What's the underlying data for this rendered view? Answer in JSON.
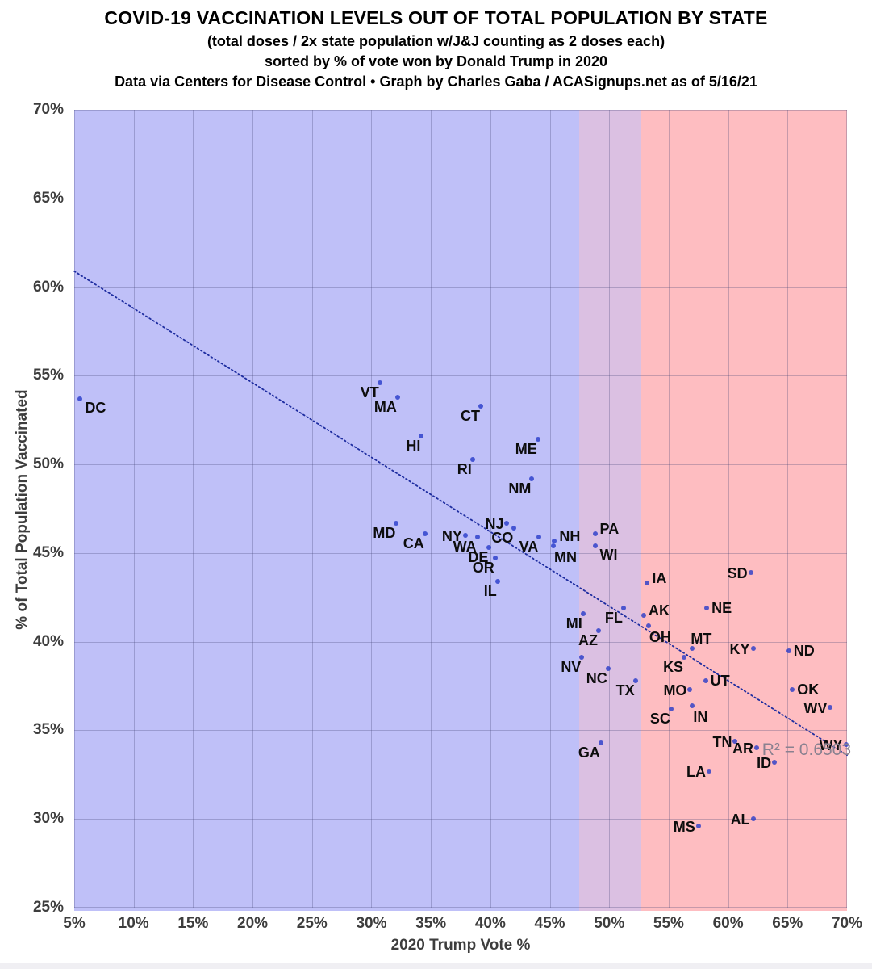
{
  "header": {
    "title": "COVID-19 VACCINATION LEVELS OUT OF TOTAL POPULATION BY STATE",
    "subtitle1": "(total doses / 2x state population w/J&J counting as 2 doses each)",
    "subtitle2": "sorted by % of vote won by Donald Trump in 2020",
    "source": "Data via Centers for Disease Control • Graph by Charles Gaba / ACASignups.net as of 5/16/21"
  },
  "chart_data": {
    "type": "scatter",
    "title": "COVID-19 VACCINATION LEVELS OUT OF TOTAL POPULATION BY STATE",
    "xlabel": "2020 Trump Vote %",
    "ylabel": "% of Total Population Vaccinated",
    "xlim": [
      5,
      70
    ],
    "ylim": [
      25,
      70
    ],
    "x_ticks": [
      5,
      10,
      15,
      20,
      25,
      30,
      35,
      40,
      45,
      50,
      55,
      60,
      65,
      70
    ],
    "y_ticks": [
      25,
      30,
      35,
      40,
      45,
      50,
      55,
      60,
      65,
      70
    ],
    "grid": true,
    "legend": "none",
    "background_bands": [
      {
        "name": "blue-states-band",
        "from": 5,
        "to": 47.5,
        "color": "#bfc0f8"
      },
      {
        "name": "purple-states-band",
        "from": 47.5,
        "to": 52.7,
        "color": "#dbc0e2"
      },
      {
        "name": "red-states-band",
        "from": 52.7,
        "to": 70,
        "color": "#febdc1"
      }
    ],
    "trendline": {
      "x1": 5,
      "y1": 60.9,
      "x2": 70,
      "y2": 33.6,
      "style": "dotted",
      "color": "#1e2da0"
    },
    "annotation": {
      "text": "R² = 0.6503",
      "x": 66.6,
      "y": 33.9,
      "color": "#8a8190"
    },
    "colors": {
      "dot": "rgba(35,55,200,0.78)",
      "trend": "#1e2da0",
      "grid": "rgba(68,68,120,0.30)",
      "tick_text": "#3d3d3d",
      "state_label": "#0d0d0d"
    },
    "points": [
      {
        "state": "DC",
        "trump": 5.5,
        "vacc": 53.7,
        "label_side": "right-below"
      },
      {
        "state": "VT",
        "trump": 30.7,
        "vacc": 54.6,
        "label_side": "below-left"
      },
      {
        "state": "MA",
        "trump": 32.2,
        "vacc": 53.8,
        "label_side": "below-left"
      },
      {
        "state": "CT",
        "trump": 39.2,
        "vacc": 53.3,
        "label_side": "below-left"
      },
      {
        "state": "HI",
        "trump": 34.2,
        "vacc": 51.6,
        "label_side": "below-left"
      },
      {
        "state": "ME",
        "trump": 44.0,
        "vacc": 51.4,
        "label_side": "below-left"
      },
      {
        "state": "RI",
        "trump": 38.5,
        "vacc": 50.3,
        "label_side": "below-left"
      },
      {
        "state": "NM",
        "trump": 43.5,
        "vacc": 49.2,
        "label_side": "below-left"
      },
      {
        "state": "MD",
        "trump": 32.1,
        "vacc": 46.7,
        "label_side": "below-left"
      },
      {
        "state": "NJ",
        "trump": 41.4,
        "vacc": 46.7,
        "label_side": "left"
      },
      {
        "state": "CO",
        "trump": 42.0,
        "vacc": 46.4,
        "label_side": "below-left"
      },
      {
        "state": "CA",
        "trump": 34.5,
        "vacc": 46.1,
        "label_side": "below-left"
      },
      {
        "state": "PA",
        "trump": 48.8,
        "vacc": 46.1,
        "label_side": "right-above"
      },
      {
        "state": "NY",
        "trump": 37.9,
        "vacc": 46.0,
        "label_side": "left"
      },
      {
        "state": "VA",
        "trump": 44.1,
        "vacc": 45.9,
        "label_side": "below-left"
      },
      {
        "state": "WA",
        "trump": 38.9,
        "vacc": 45.9,
        "label_side": "below-left"
      },
      {
        "state": "NH",
        "trump": 45.4,
        "vacc": 45.7,
        "label_side": "right-above"
      },
      {
        "state": "MN",
        "trump": 45.3,
        "vacc": 45.4,
        "label_side": "below-right"
      },
      {
        "state": "WI",
        "trump": 48.8,
        "vacc": 45.4,
        "label_side": "right-below"
      },
      {
        "state": "DE",
        "trump": 39.9,
        "vacc": 45.3,
        "label_side": "below-left"
      },
      {
        "state": "OR",
        "trump": 40.4,
        "vacc": 44.7,
        "label_side": "below-left"
      },
      {
        "state": "SD",
        "trump": 61.9,
        "vacc": 43.9,
        "label_side": "left"
      },
      {
        "state": "IL",
        "trump": 40.6,
        "vacc": 43.4,
        "label_side": "below-left"
      },
      {
        "state": "IA",
        "trump": 53.2,
        "vacc": 43.3,
        "label_side": "right-above"
      },
      {
        "state": "NE",
        "trump": 58.2,
        "vacc": 41.9,
        "label_side": "right"
      },
      {
        "state": "FL",
        "trump": 51.2,
        "vacc": 41.9,
        "label_side": "below-left"
      },
      {
        "state": "MI",
        "trump": 47.8,
        "vacc": 41.6,
        "label_side": "below-left"
      },
      {
        "state": "AK",
        "trump": 52.9,
        "vacc": 41.5,
        "label_side": "right-above"
      },
      {
        "state": "OH",
        "trump": 53.3,
        "vacc": 40.9,
        "label_side": "below-right"
      },
      {
        "state": "AZ",
        "trump": 49.1,
        "vacc": 40.6,
        "label_side": "below-left"
      },
      {
        "state": "MT",
        "trump": 57.0,
        "vacc": 39.6,
        "label_side": "above-right"
      },
      {
        "state": "KY",
        "trump": 62.1,
        "vacc": 39.6,
        "label_side": "left"
      },
      {
        "state": "ND",
        "trump": 65.1,
        "vacc": 39.5,
        "label_side": "right"
      },
      {
        "state": "KS",
        "trump": 56.3,
        "vacc": 39.1,
        "label_side": "below-left"
      },
      {
        "state": "NV",
        "trump": 47.7,
        "vacc": 39.1,
        "label_side": "below-left"
      },
      {
        "state": "NC",
        "trump": 49.9,
        "vacc": 38.5,
        "label_side": "below-left"
      },
      {
        "state": "UT",
        "trump": 58.1,
        "vacc": 37.8,
        "label_side": "right"
      },
      {
        "state": "TX",
        "trump": 52.2,
        "vacc": 37.8,
        "label_side": "below-left"
      },
      {
        "state": "MO",
        "trump": 56.8,
        "vacc": 37.3,
        "label_side": "left"
      },
      {
        "state": "OK",
        "trump": 65.4,
        "vacc": 37.3,
        "label_side": "right"
      },
      {
        "state": "IN",
        "trump": 57.0,
        "vacc": 36.4,
        "label_side": "below-right"
      },
      {
        "state": "WV",
        "trump": 68.6,
        "vacc": 36.3,
        "label_side": "left"
      },
      {
        "state": "SC",
        "trump": 55.2,
        "vacc": 36.2,
        "label_side": "below-left"
      },
      {
        "state": "TN",
        "trump": 60.6,
        "vacc": 34.4,
        "label_side": "left"
      },
      {
        "state": "GA",
        "trump": 49.3,
        "vacc": 34.3,
        "label_side": "below-left"
      },
      {
        "state": "WY",
        "trump": 69.9,
        "vacc": 34.2,
        "label_side": "left"
      },
      {
        "state": "AR",
        "trump": 62.4,
        "vacc": 34.0,
        "label_side": "left"
      },
      {
        "state": "ID",
        "trump": 63.9,
        "vacc": 33.2,
        "label_side": "left"
      },
      {
        "state": "LA",
        "trump": 58.4,
        "vacc": 32.7,
        "label_side": "left"
      },
      {
        "state": "AL",
        "trump": 62.1,
        "vacc": 30.0,
        "label_side": "left"
      },
      {
        "state": "MS",
        "trump": 57.5,
        "vacc": 29.6,
        "label_side": "left"
      }
    ]
  }
}
